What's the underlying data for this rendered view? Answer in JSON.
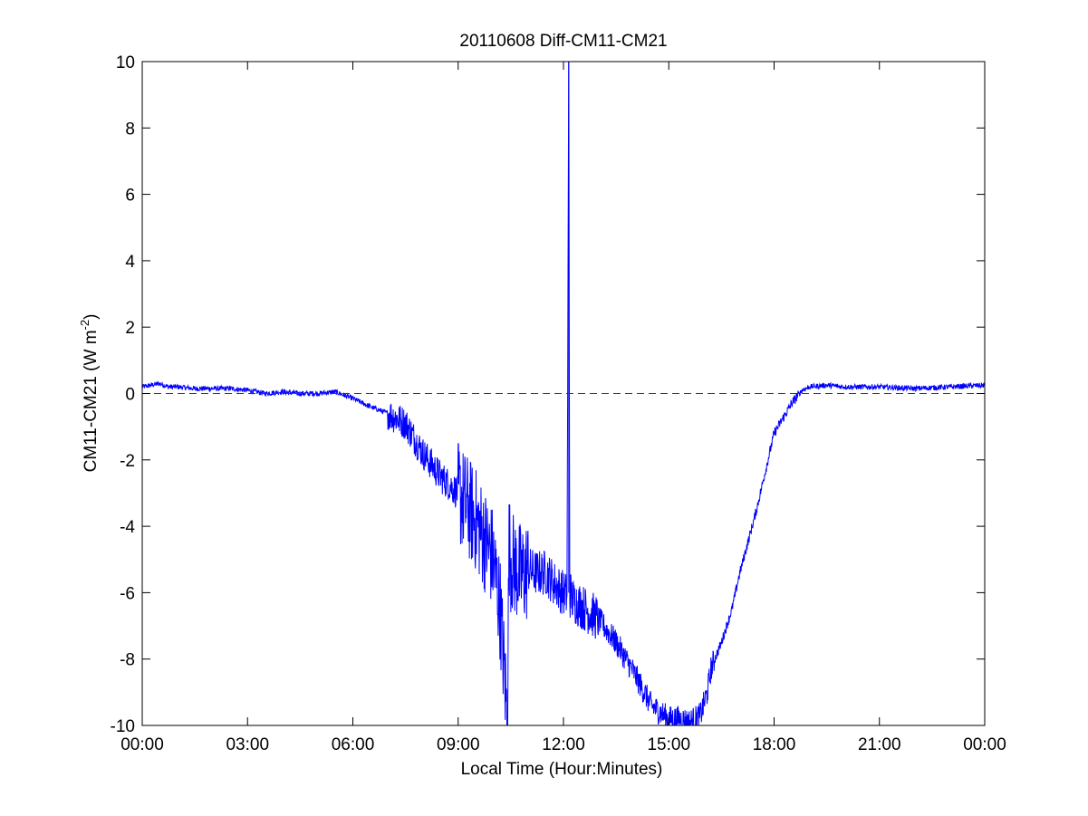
{
  "chart_data": {
    "type": "line",
    "title": "20110608 Diff-CM11-CM21",
    "xlabel": "Local Time (Hour:Minutes)",
    "ylabel_main": "CM11-CM21 (W m",
    "ylabel_sup": "-2",
    "ylabel_close": ")",
    "xlim": [
      0,
      24
    ],
    "ylim": [
      -10,
      10
    ],
    "xticks": [
      0,
      3,
      6,
      9,
      12,
      15,
      18,
      21,
      24
    ],
    "xtick_labels": [
      "00:00",
      "03:00",
      "06:00",
      "09:00",
      "12:00",
      "15:00",
      "18:00",
      "21:00",
      "00:00"
    ],
    "yticks": [
      -10,
      -8,
      -6,
      -4,
      -2,
      0,
      2,
      4,
      6,
      8,
      10
    ],
    "ytick_labels": [
      "-10",
      "-8",
      "-6",
      "-4",
      "-2",
      "0",
      "2",
      "4",
      "6",
      "8",
      "10"
    ],
    "grid": false,
    "reference_line": {
      "y": 0,
      "style": "dashed",
      "color": "#cc0000"
    },
    "series_color": "#0000ff",
    "series": [
      {
        "x": [
          0,
          0.25,
          0.5,
          0.75,
          1,
          1.5,
          2,
          2.5,
          3,
          3.5,
          4,
          4.5,
          5,
          5.5,
          6,
          6.5,
          7,
          7.5,
          8,
          8.5,
          9,
          9.5,
          10,
          10.2,
          10.4,
          10.45,
          10.5,
          10.6,
          10.8,
          11,
          11.2,
          11.5,
          11.8,
          12,
          12.1,
          12.15,
          12.18,
          12.2,
          12.25,
          12.5,
          13,
          13.5,
          14,
          14.5,
          15,
          15.3,
          15.6,
          15.9,
          16.1,
          16.2,
          16.5,
          16.8,
          17,
          17.5,
          18,
          18.5,
          18.8,
          19,
          19.5,
          20,
          21,
          22,
          23,
          24
        ],
        "y": [
          0.2,
          0.25,
          0.3,
          0.2,
          0.2,
          0.15,
          0.15,
          0.15,
          0.1,
          0.0,
          0.05,
          0.0,
          0.0,
          0.05,
          -0.15,
          -0.4,
          -0.6,
          -0.9,
          -1.8,
          -2.5,
          -3.0,
          -3.8,
          -5.0,
          -6.5,
          -9.8,
          -4.5,
          -5.0,
          -5.2,
          -5.5,
          -5.3,
          -5.4,
          -5.4,
          -5.8,
          -6.0,
          -6.1,
          10,
          -6.2,
          -6.0,
          -6.2,
          -6.4,
          -6.8,
          -7.5,
          -8.4,
          -9.4,
          -9.8,
          -9.8,
          -9.9,
          -9.7,
          -9.0,
          -8.3,
          -7.5,
          -6.5,
          -5.5,
          -3.5,
          -1.2,
          -0.3,
          0.1,
          0.2,
          0.25,
          0.2,
          0.2,
          0.15,
          0.2,
          0.25
        ]
      }
    ],
    "noise": {
      "base": 0.08,
      "segments": [
        {
          "x0": 7,
          "x1": 9,
          "amp": 0.5
        },
        {
          "x0": 9,
          "x1": 11,
          "amp": 1.6
        },
        {
          "x0": 11,
          "x1": 13,
          "amp": 0.7
        },
        {
          "x0": 13,
          "x1": 16.3,
          "amp": 0.4
        },
        {
          "x0": 16.3,
          "x1": 18.7,
          "amp": 0.15
        }
      ]
    }
  }
}
